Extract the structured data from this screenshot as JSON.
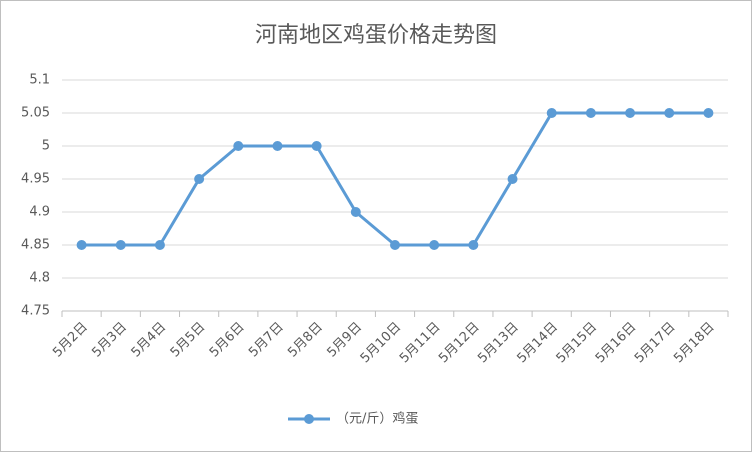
{
  "chart_data": {
    "type": "line",
    "title": "河南地区鸡蛋价格走势图",
    "categories": [
      "5月2日",
      "5月3日",
      "5月4日",
      "5月5日",
      "5月6日",
      "5月7日",
      "5月8日",
      "5月9日",
      "5月10日",
      "5月11日",
      "5月12日",
      "5月13日",
      "5月14日",
      "5月15日",
      "5月16日",
      "5月17日",
      "5月18日"
    ],
    "series": [
      {
        "name": "（元/斤）鸡蛋",
        "color": "#5b9bd5",
        "values": [
          4.85,
          4.85,
          4.85,
          4.95,
          5,
          5,
          5,
          4.9,
          4.85,
          4.85,
          4.85,
          4.95,
          5.05,
          5.05,
          5.05,
          5.05,
          5.05
        ]
      }
    ],
    "ylim": [
      4.75,
      5.1
    ],
    "yticks": [
      4.75,
      4.8,
      4.85,
      4.9,
      4.95,
      5,
      5.05,
      5.1
    ],
    "grid": true,
    "legend": "bottom"
  }
}
